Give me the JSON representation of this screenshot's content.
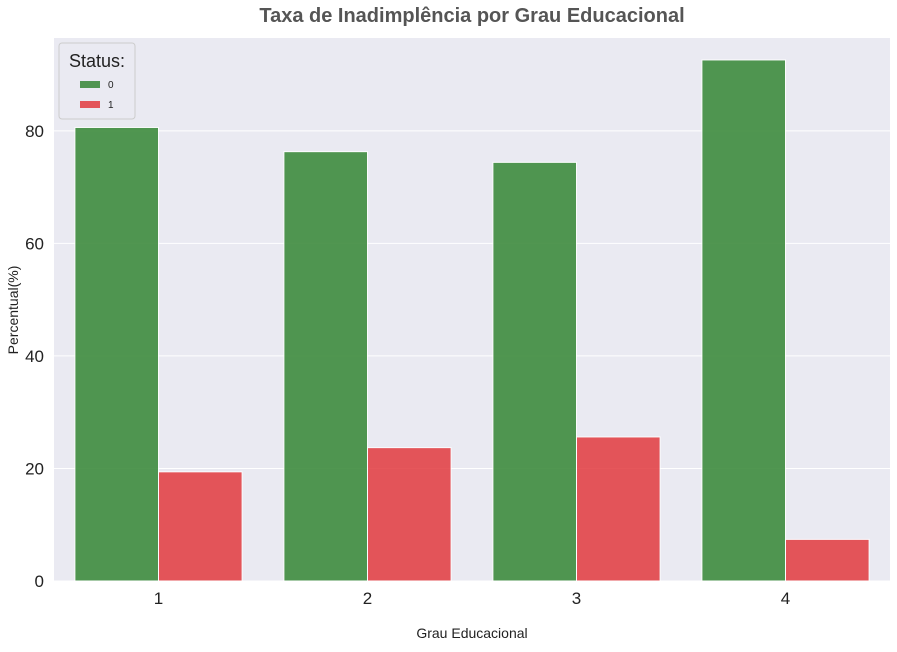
{
  "chart_data": {
    "type": "bar",
    "title": "Taxa de Inadimplência por Grau Educacional",
    "xlabel": "Grau Educacional",
    "ylabel": "Percentual(%)",
    "categories": [
      "1",
      "2",
      "3",
      "4"
    ],
    "ylim": [
      0,
      96.5
    ],
    "yticks": [
      0,
      20,
      40,
      60,
      80
    ],
    "grid": true,
    "legend": {
      "title": "Status:",
      "position": "top-left"
    },
    "series": [
      {
        "name": "0",
        "color": "#3f8c3f",
        "values": [
          80.6,
          76.3,
          74.4,
          92.6
        ]
      },
      {
        "name": "1",
        "color": "#e23a3f",
        "values": [
          19.4,
          23.7,
          25.6,
          7.4
        ]
      }
    ],
    "colors": {
      "background": "#eaeaf2",
      "grid": "#ffffff",
      "text": "#222222",
      "title": "#555555"
    }
  }
}
